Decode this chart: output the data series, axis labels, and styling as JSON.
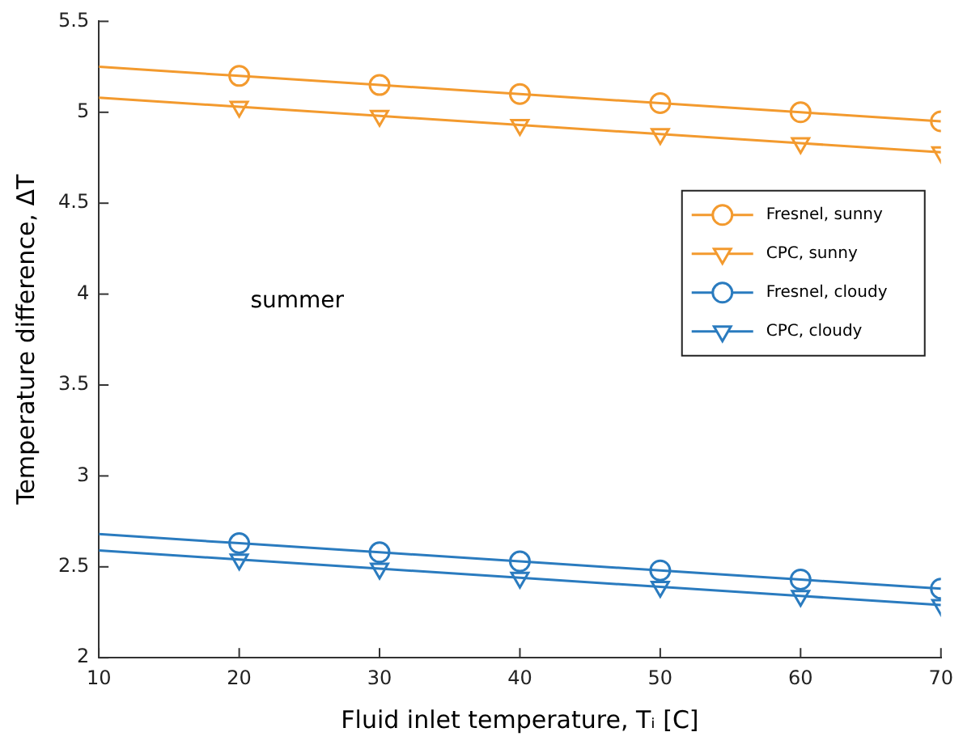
{
  "chart_data": {
    "type": "line",
    "xlabel": "Fluid inlet temperature, Tᵢ [C]",
    "ylabel": "Temperature difference, ΔT",
    "x": [
      10,
      20,
      30,
      40,
      50,
      60,
      70
    ],
    "series": [
      {
        "name": "Fresnel, sunny",
        "color": "#f39a2e",
        "marker": "circle",
        "values": [
          5.25,
          5.2,
          5.15,
          5.1,
          5.05,
          5.0,
          4.95
        ]
      },
      {
        "name": "CPC, sunny",
        "color": "#f39a2e",
        "marker": "triangle",
        "values": [
          5.08,
          5.03,
          4.98,
          4.93,
          4.88,
          4.83,
          4.78
        ]
      },
      {
        "name": "Fresnel, cloudy",
        "color": "#2a7bbf",
        "marker": "circle",
        "values": [
          2.68,
          2.63,
          2.58,
          2.53,
          2.48,
          2.43,
          2.38
        ]
      },
      {
        "name": "CPC, cloudy",
        "color": "#2a7bbf",
        "marker": "triangle",
        "values": [
          2.59,
          2.54,
          2.49,
          2.44,
          2.39,
          2.34,
          2.29
        ]
      }
    ],
    "xlim": [
      10,
      70
    ],
    "xticks": [
      10,
      20,
      30,
      40,
      50,
      60,
      70
    ],
    "ylim": [
      2,
      5.5
    ],
    "yticks": [
      2,
      2.5,
      3,
      3.5,
      4,
      4.5,
      5,
      5.5
    ],
    "grid": false,
    "legend": "right",
    "line_style": "solid",
    "annotations": [
      "summer"
    ]
  }
}
